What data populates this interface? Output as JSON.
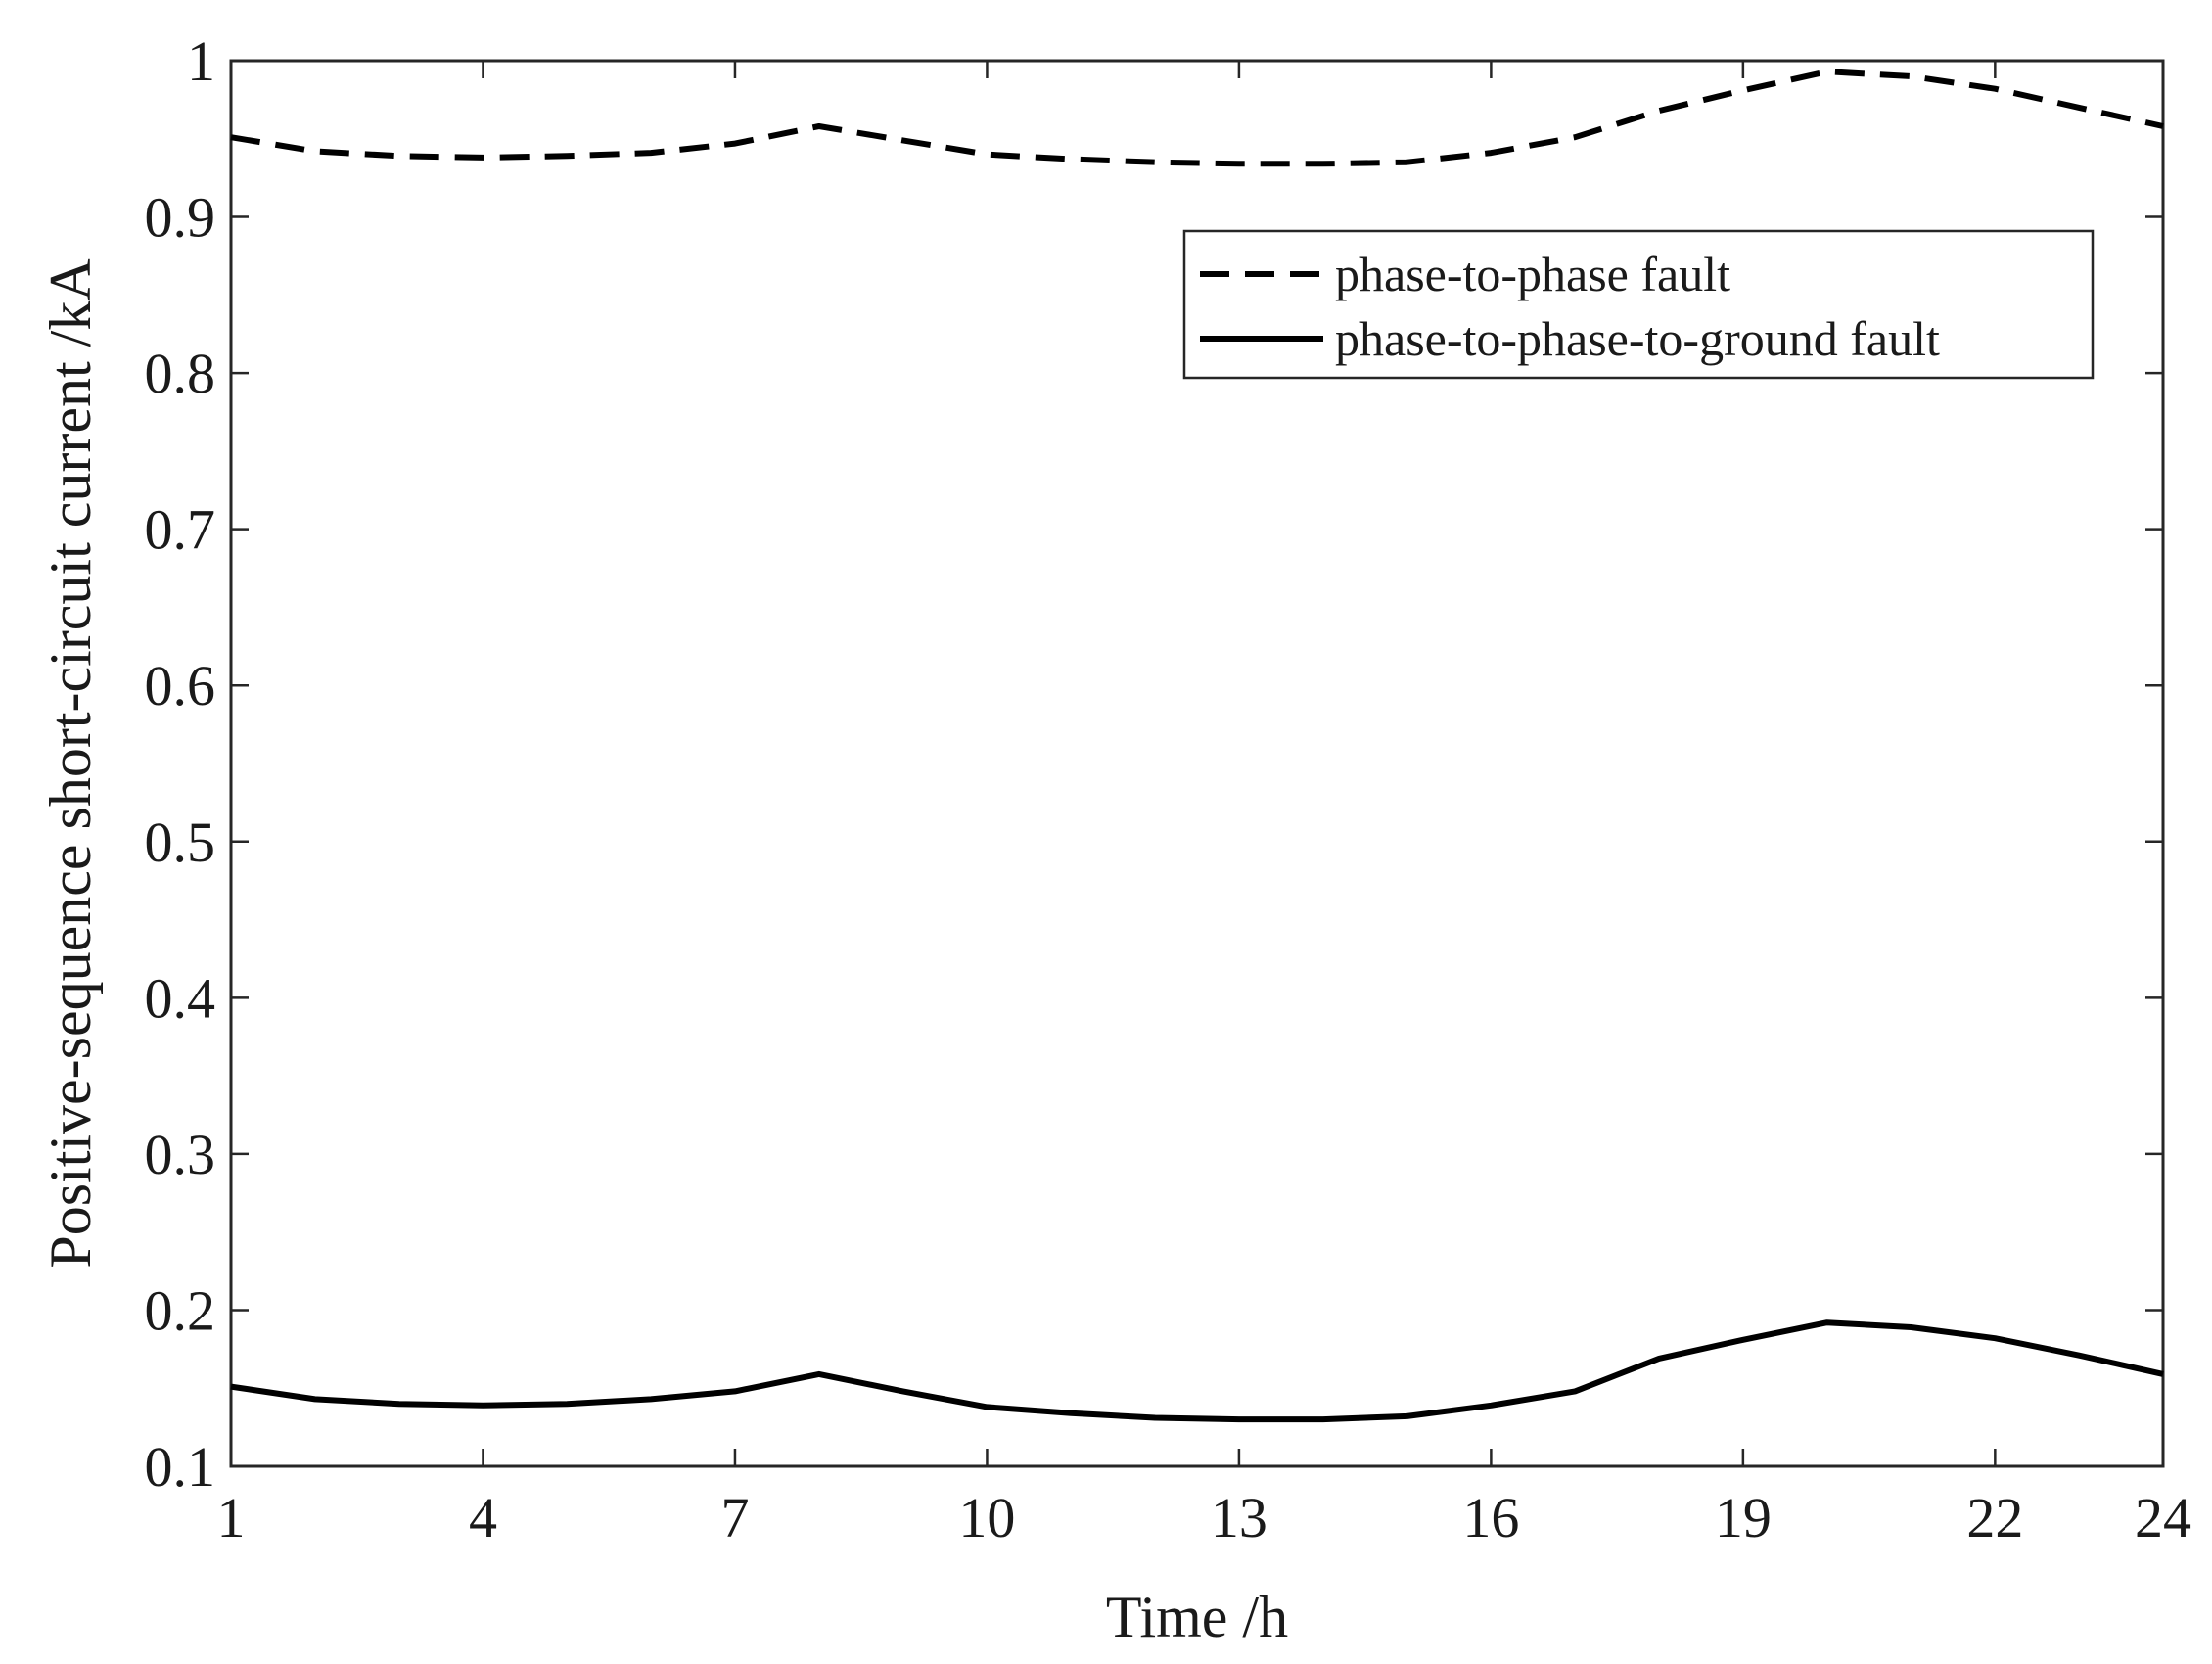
{
  "chart_data": {
    "type": "line",
    "xlabel": "Time /h",
    "ylabel": "Positive-sequence short-circuit current /kA",
    "xlim": [
      1,
      24
    ],
    "ylim": [
      0.1,
      1
    ],
    "xticks": [
      1,
      4,
      7,
      10,
      13,
      16,
      19,
      22,
      24
    ],
    "yticks": [
      0.1,
      0.2,
      0.3,
      0.4,
      0.5,
      0.6,
      0.7,
      0.8,
      0.9,
      1
    ],
    "ytick_labels": [
      "0.1",
      "0.2",
      "0.3",
      "0.4",
      "0.5",
      "0.6",
      "0.7",
      "0.8",
      "0.9",
      "1"
    ],
    "grid": false,
    "legend_position": "top-right",
    "line_color": "#000000",
    "x": [
      1,
      2,
      3,
      4,
      5,
      6,
      7,
      8,
      9,
      10,
      11,
      12,
      13,
      14,
      15,
      16,
      17,
      18,
      19,
      20,
      21,
      22,
      23,
      24
    ],
    "series": [
      {
        "name": "phase-to-phase fault",
        "style": "dashed",
        "values": [
          0.951,
          0.942,
          0.939,
          0.938,
          0.939,
          0.941,
          0.947,
          0.958,
          0.949,
          0.94,
          0.937,
          0.935,
          0.934,
          0.934,
          0.935,
          0.941,
          0.951,
          0.968,
          0.981,
          0.993,
          0.99,
          0.982,
          0.97,
          0.958
        ]
      },
      {
        "name": "phase-to-phase-to-ground fault",
        "style": "solid",
        "values": [
          0.151,
          0.143,
          0.14,
          0.139,
          0.14,
          0.143,
          0.148,
          0.159,
          0.148,
          0.138,
          0.134,
          0.131,
          0.13,
          0.13,
          0.132,
          0.139,
          0.148,
          0.169,
          0.181,
          0.192,
          0.189,
          0.182,
          0.171,
          0.159
        ]
      }
    ]
  }
}
